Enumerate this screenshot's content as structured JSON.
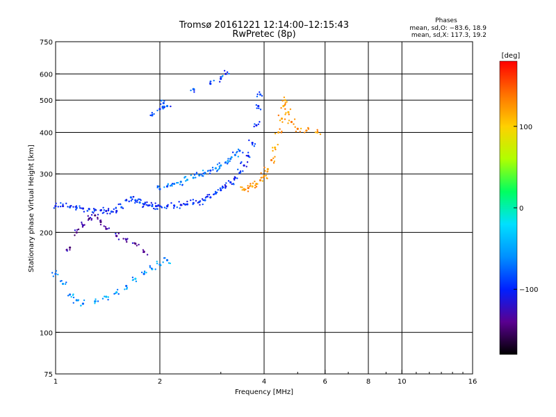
{
  "header": {
    "title": "Tromsø 20161221 12:14:00–12:15:43",
    "subtitle": "RwPretec (8p)"
  },
  "stats": {
    "heading": "Phases",
    "line_o": "mean, sd,O: −83.6, 18.9",
    "line_x": "mean, sd,X: 117.3, 19.2"
  },
  "chart_data": {
    "type": "scatter",
    "xlabel": "Frequency [MHz]",
    "ylabel": "Stationary phase Virtual Height [km]",
    "x_scale": "log",
    "y_scale": "log",
    "xlim": [
      1,
      16
    ],
    "ylim": [
      75,
      750
    ],
    "x_ticks": [
      1,
      2,
      4,
      6,
      8,
      10,
      16
    ],
    "x_tick_labels": [
      "1",
      "2",
      "4",
      "6",
      "8",
      "10",
      "16"
    ],
    "y_ticks": [
      75,
      100,
      200,
      300,
      400,
      500,
      600,
      750
    ],
    "y_tick_labels": [
      "75",
      "100",
      "200",
      "300",
      "400",
      "500",
      "600",
      "750"
    ],
    "grid": true,
    "colorbar": {
      "label": "[deg]",
      "range": [
        -180,
        180
      ],
      "ticks": [
        -100,
        0,
        100
      ],
      "tick_labels": [
        "−100",
        "0",
        "100"
      ],
      "colors": [
        "#000000",
        "#5a0090",
        "#0020ff",
        "#0090ff",
        "#00e0ff",
        "#00ff60",
        "#b0ff00",
        "#ffd000",
        "#ff7000",
        "#ff0000"
      ]
    },
    "series": [
      {
        "points": [
          [
            1.0,
            240
          ],
          [
            1.05,
            240
          ],
          [
            1.1,
            238
          ],
          [
            1.15,
            237
          ],
          [
            1.2,
            236
          ],
          [
            1.25,
            235
          ],
          [
            1.3,
            234
          ],
          [
            1.35,
            233
          ],
          [
            1.4,
            232
          ],
          [
            1.45,
            231
          ],
          [
            1.5,
            232
          ],
          [
            1.55,
            238
          ],
          [
            1.6,
            250
          ],
          [
            1.65,
            255
          ],
          [
            1.7,
            250
          ],
          [
            1.75,
            246
          ],
          [
            1.8,
            243
          ],
          [
            1.85,
            241
          ],
          [
            1.9,
            240
          ],
          [
            1.95,
            240
          ],
          [
            2.0,
            240
          ],
          [
            2.1,
            240
          ],
          [
            2.2,
            241
          ],
          [
            2.3,
            242
          ],
          [
            2.4,
            243
          ],
          [
            2.5,
            245
          ],
          [
            2.6,
            247
          ],
          [
            2.7,
            250
          ],
          [
            2.8,
            255
          ],
          [
            2.9,
            262
          ],
          [
            3.0,
            268
          ],
          [
            3.1,
            275
          ],
          [
            3.2,
            283
          ],
          [
            3.3,
            292
          ],
          [
            3.4,
            302
          ],
          [
            3.5,
            318
          ],
          [
            3.6,
            340
          ],
          [
            3.7,
            372
          ],
          [
            3.8,
            420
          ],
          [
            3.85,
            480
          ],
          [
            3.9,
            520
          ]
        ]
      },
      {
        "points": [
          [
            2.0,
            270
          ],
          [
            2.1,
            275
          ],
          [
            2.2,
            280
          ],
          [
            2.3,
            284
          ],
          [
            2.4,
            288
          ],
          [
            2.5,
            292
          ],
          [
            2.6,
            297
          ],
          [
            2.7,
            302
          ],
          [
            2.8,
            307
          ],
          [
            2.9,
            312
          ],
          [
            3.0,
            318
          ],
          [
            3.1,
            325
          ],
          [
            3.2,
            333
          ],
          [
            3.3,
            342
          ],
          [
            3.4,
            352
          ]
        ]
      },
      {
        "points": [
          [
            3.5,
            270
          ],
          [
            3.6,
            272
          ],
          [
            3.7,
            275
          ],
          [
            3.8,
            280
          ],
          [
            3.9,
            287
          ],
          [
            4.0,
            296
          ],
          [
            4.1,
            310
          ],
          [
            4.2,
            330
          ],
          [
            4.3,
            360
          ],
          [
            4.4,
            400
          ],
          [
            4.5,
            440
          ],
          [
            4.55,
            480
          ],
          [
            4.6,
            500
          ],
          [
            4.7,
            460
          ],
          [
            4.8,
            430
          ],
          [
            5.0,
            410
          ],
          [
            5.3,
            405
          ],
          [
            5.7,
            400
          ]
        ]
      },
      {
        "points": [
          [
            1.0,
            150
          ],
          [
            1.05,
            140
          ],
          [
            1.1,
            130
          ],
          [
            1.15,
            125
          ],
          [
            1.2,
            122
          ],
          [
            1.3,
            124
          ],
          [
            1.4,
            128
          ],
          [
            1.5,
            132
          ],
          [
            1.6,
            138
          ],
          [
            1.7,
            145
          ],
          [
            1.8,
            150
          ],
          [
            1.9,
            155
          ],
          [
            2.0,
            160
          ],
          [
            2.1,
            165
          ]
        ]
      },
      {
        "points": [
          [
            1.1,
            180
          ],
          [
            1.15,
            200
          ],
          [
            1.2,
            210
          ],
          [
            1.25,
            220
          ],
          [
            1.3,
            225
          ],
          [
            1.35,
            215
          ],
          [
            1.4,
            205
          ],
          [
            1.5,
            195
          ],
          [
            1.6,
            190
          ],
          [
            1.7,
            185
          ],
          [
            1.8,
            175
          ]
        ]
      },
      {
        "points": [
          [
            1.9,
            450
          ],
          [
            2.0,
            470
          ],
          [
            2.05,
            490
          ],
          [
            2.1,
            480
          ],
          [
            2.5,
            540
          ],
          [
            2.8,
            560
          ],
          [
            3.0,
            580
          ],
          [
            3.1,
            600
          ]
        ]
      }
    ]
  }
}
